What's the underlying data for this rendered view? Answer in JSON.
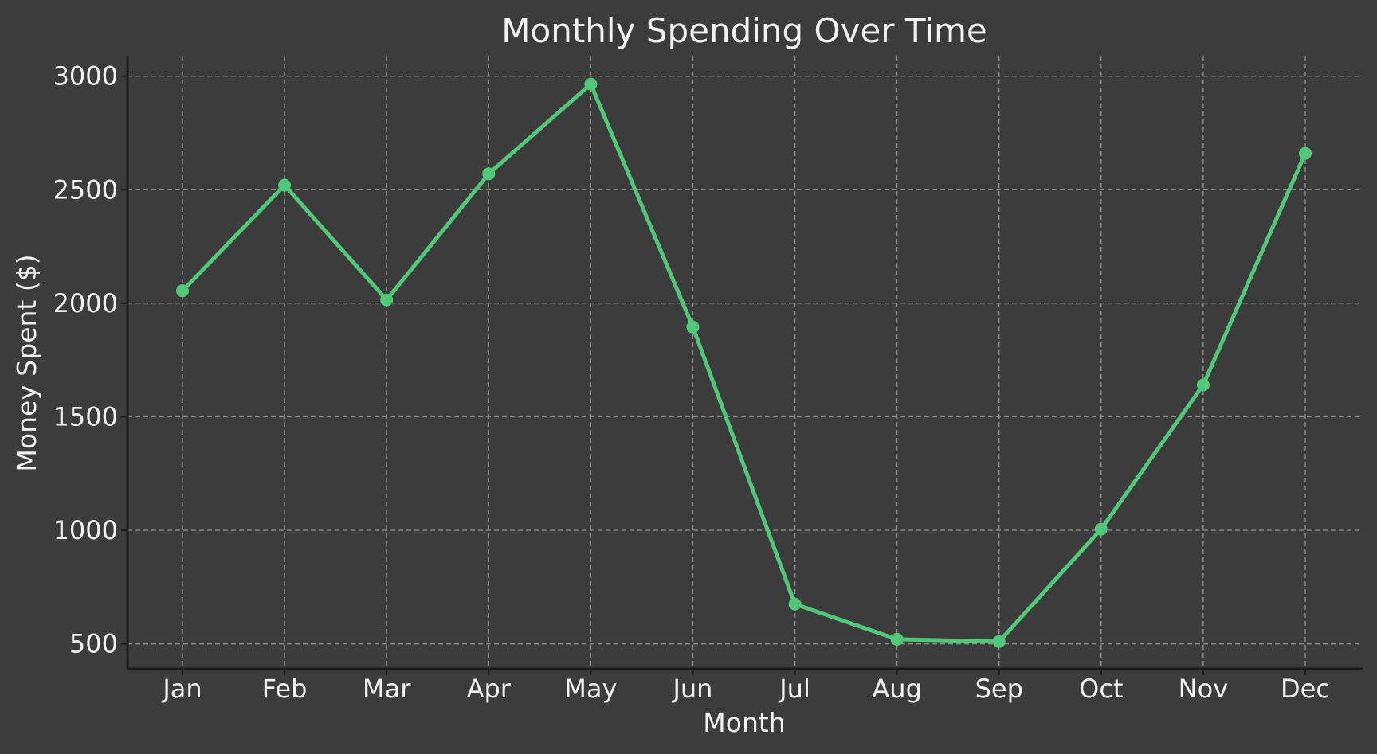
{
  "chart_data": {
    "type": "line",
    "title": "Monthly Spending Over Time",
    "xlabel": "Month",
    "ylabel": "Money Spent ($)",
    "categories": [
      "Jan",
      "Feb",
      "Mar",
      "Apr",
      "May",
      "Jun",
      "Jul",
      "Aug",
      "Sep",
      "Oct",
      "Nov",
      "Dec"
    ],
    "series": [
      {
        "values": [
          2055,
          2520,
          2015,
          2570,
          2965,
          1895,
          675,
          520,
          510,
          1005,
          1640,
          2660
        ],
        "color": "#4fc878",
        "marker": "circle"
      }
    ],
    "yticks": [
      500,
      1000,
      1500,
      2000,
      2500,
      3000
    ],
    "ylim": [
      390,
      3090
    ],
    "grid": true,
    "background": "#3c3c3c",
    "text_color": "#f2f2f2",
    "grid_color": "#8a8a8a"
  }
}
